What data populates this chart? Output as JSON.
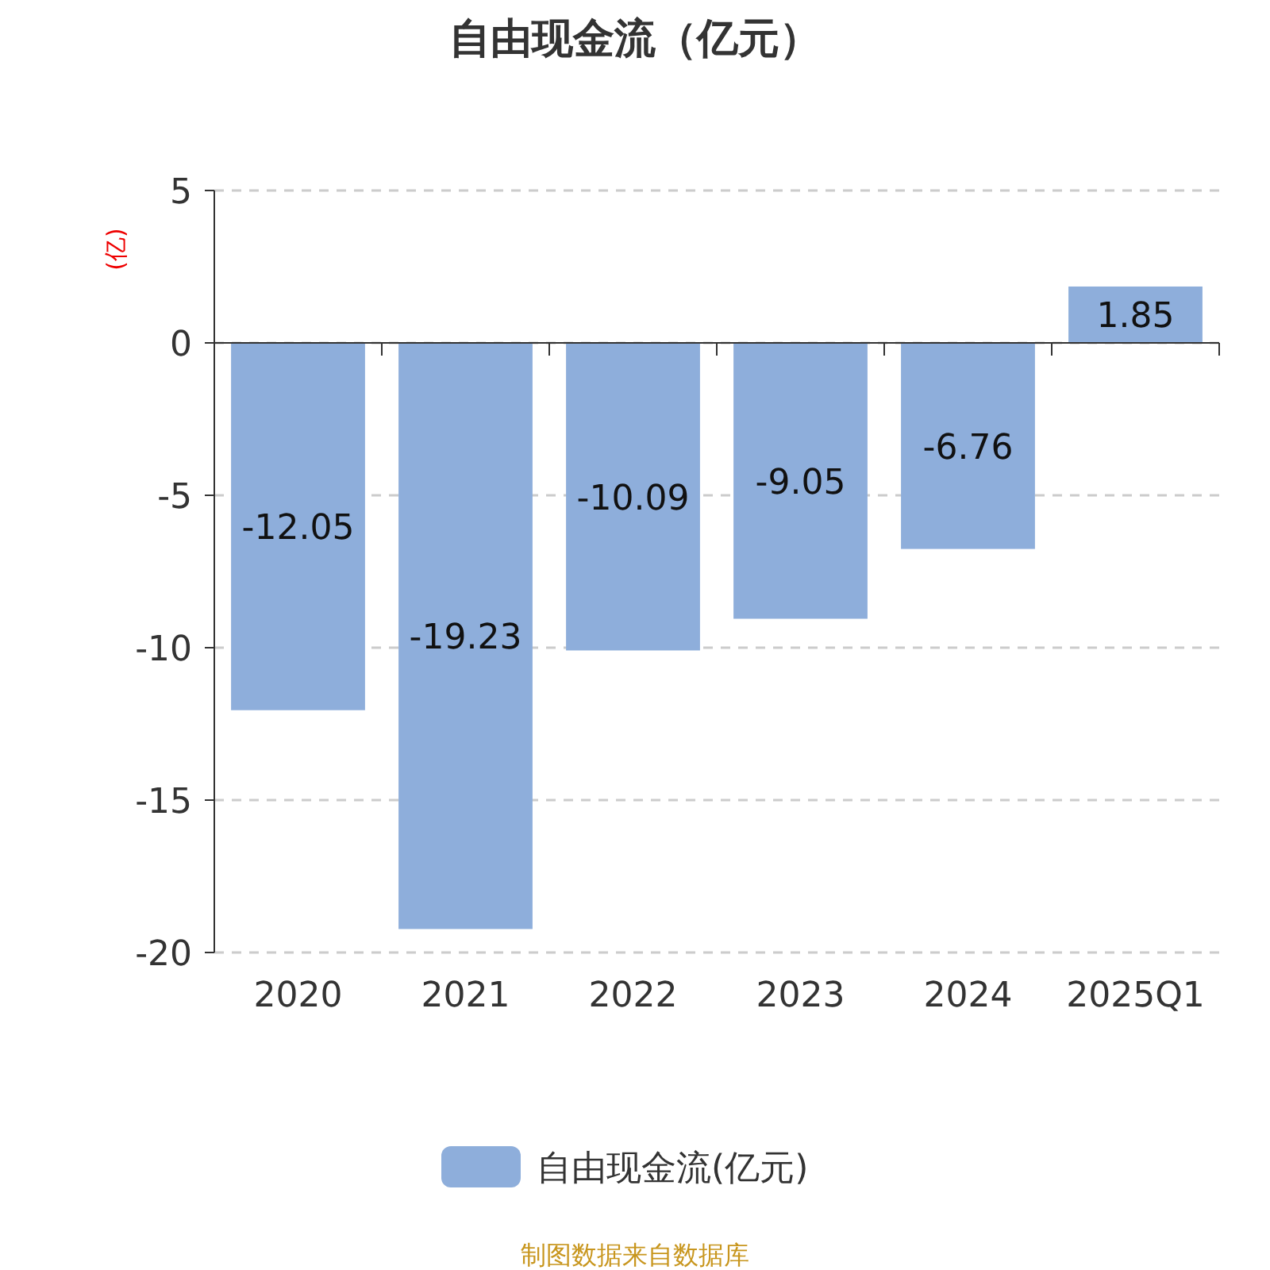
{
  "chart_data": {
    "type": "bar",
    "title": "自由现金流（亿元）",
    "ylabel": "(亿)",
    "categories": [
      "2020",
      "2021",
      "2022",
      "2023",
      "2024",
      "2025Q1"
    ],
    "series": [
      {
        "name": "自由现金流(亿元)",
        "color": "#8eaedb",
        "values": [
          -12.05,
          -19.23,
          -10.09,
          -9.05,
          -6.76,
          1.85
        ]
      }
    ],
    "ylim": [
      -20,
      5
    ],
    "yticks": [
      -20,
      -15,
      -10,
      -5,
      0,
      5
    ],
    "grid": "y",
    "legend": "bottom",
    "data_labels": true,
    "annotations": [
      "制图数据来自数据库"
    ]
  }
}
